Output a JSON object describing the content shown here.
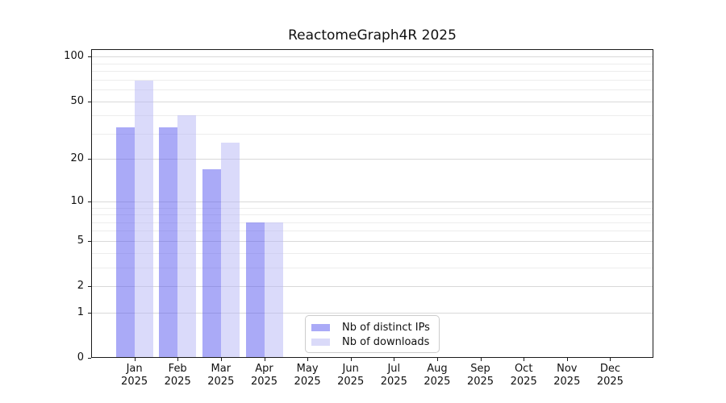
{
  "chart_data": {
    "type": "bar",
    "title": "ReactomeGraph4R 2025",
    "categories": [
      "Jan",
      "Feb",
      "Mar",
      "Apr",
      "May",
      "Jun",
      "Jul",
      "Aug",
      "Sep",
      "Oct",
      "Nov",
      "Dec"
    ],
    "x_tick_second_line": "2025",
    "series": [
      {
        "name": "Nb of distinct IPs",
        "legend_color": "#aaaaf7",
        "fill": "rgba(85,85,239,0.5)",
        "values": [
          33,
          33,
          17,
          7,
          null,
          null,
          null,
          null,
          null,
          null,
          null,
          null
        ]
      },
      {
        "name": "Nb of downloads",
        "legend_color": "#dadaf9",
        "fill": "rgba(181,181,245,0.5)",
        "values": [
          69,
          40,
          26,
          7,
          null,
          null,
          null,
          null,
          null,
          null,
          null,
          null
        ]
      }
    ],
    "y_scale": "log1p",
    "y_ticks": [
      0,
      1,
      2,
      5,
      10,
      20,
      50,
      100
    ],
    "y_minor_gridlines": [
      3,
      4,
      6,
      7,
      8,
      9,
      30,
      40,
      60,
      70,
      80,
      90
    ],
    "ylim": [
      0,
      112
    ],
    "grid": "horizontal",
    "grid_major_color": "#d9d9d9",
    "grid_minor_color": "#ededed",
    "legend_position": "inside lower-center",
    "xlabel": "",
    "ylabel": ""
  }
}
